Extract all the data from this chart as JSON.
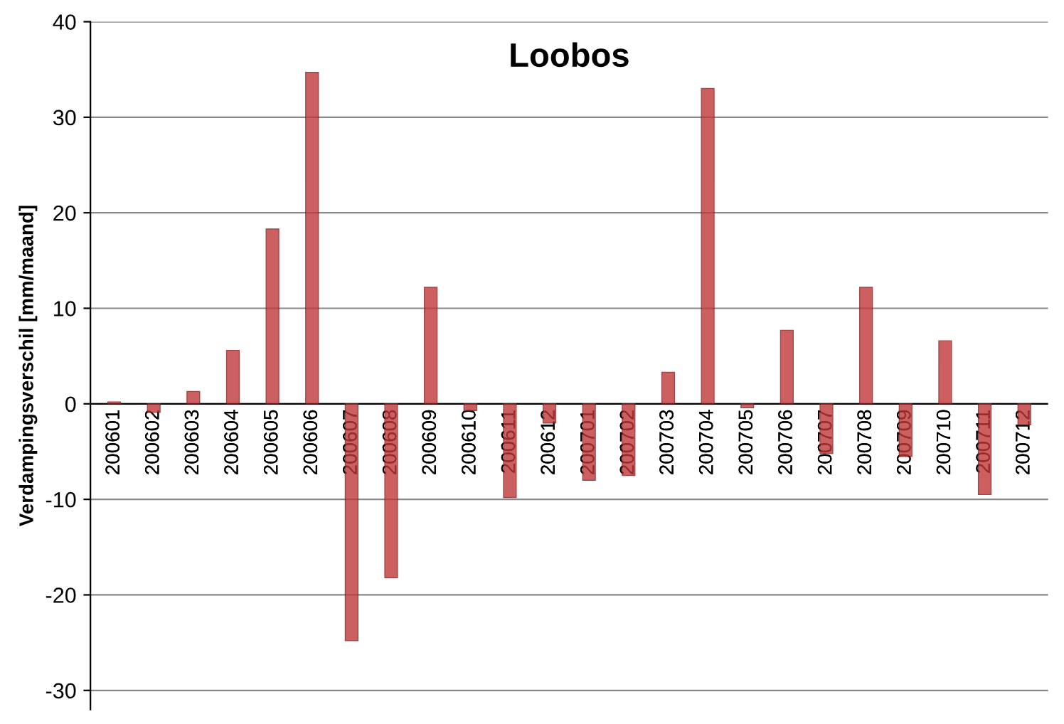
{
  "chart_data": {
    "type": "bar",
    "title": "Loobos",
    "ylabel": "Verdampingsverschil [mm/maand]",
    "categories": [
      "200601",
      "200602",
      "200603",
      "200604",
      "200605",
      "200606",
      "200607",
      "200608",
      "200609",
      "200610",
      "200611",
      "200612",
      "200701",
      "200702",
      "200703",
      "200704",
      "200705",
      "200706",
      "200707",
      "200708",
      "200709",
      "200710",
      "200711",
      "200712"
    ],
    "values": [
      0.2,
      -0.9,
      1.3,
      5.6,
      18.3,
      34.7,
      -24.8,
      -18.2,
      12.2,
      -0.7,
      -9.8,
      -2.0,
      -8.0,
      -7.5,
      3.3,
      33.0,
      -0.4,
      7.7,
      -5.2,
      12.2,
      -5.5,
      6.6,
      -9.5,
      -2.2
    ],
    "color": "#c0393a",
    "ylim": [
      -32,
      40
    ],
    "yticks": [
      -30,
      -20,
      -10,
      0,
      10,
      20,
      30,
      40
    ],
    "grid": "y"
  }
}
